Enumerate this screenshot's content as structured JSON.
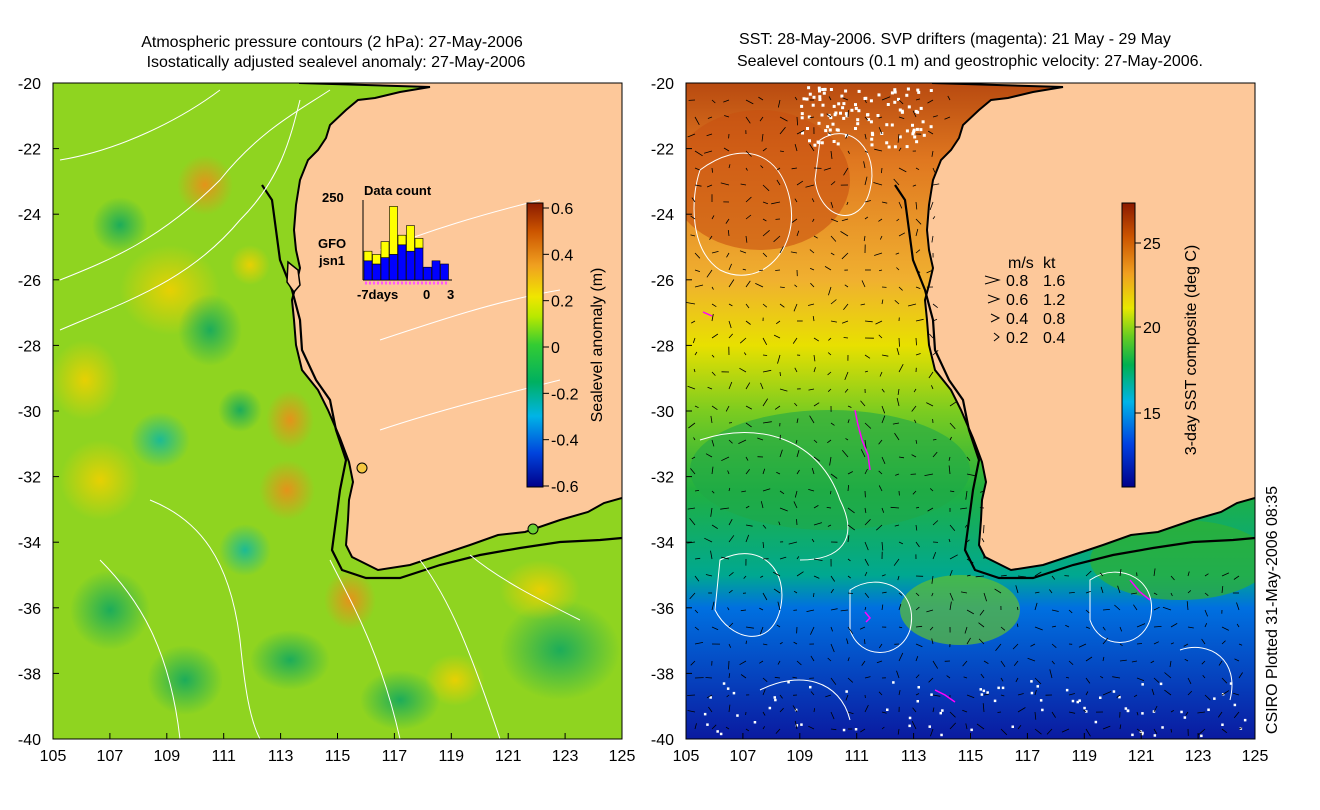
{
  "left_panel": {
    "title_line1": "Atmospheric pressure contours (2 hPa): 27-May-2006",
    "title_line2": "Isostatically adjusted sealevel anomaly: 27-May-2006",
    "x_ticks": [
      "105",
      "107",
      "109",
      "111",
      "113",
      "115",
      "117",
      "119",
      "121",
      "123",
      "125"
    ],
    "y_ticks": [
      "-20",
      "-22",
      "-24",
      "-26",
      "-28",
      "-30",
      "-32",
      "-34",
      "-36",
      "-38",
      "-40"
    ],
    "colorbar": {
      "label": "Sealevel anomaly (m)",
      "ticks": [
        "0.6",
        "0.4",
        "0.2",
        "0",
        "-0.2",
        "-0.4",
        "-0.6"
      ]
    },
    "inset": {
      "title": "Data count",
      "ymax_label": "250",
      "legend": [
        {
          "label": "GFO",
          "color": "#ffff00"
        },
        {
          "label": "jsn1",
          "color": "#0000ff"
        }
      ],
      "x_labels": [
        "-7days",
        "0",
        "3"
      ],
      "bars_gfo": [
        90,
        80,
        120,
        230,
        140,
        170,
        130,
        0,
        0,
        0
      ],
      "bars_jsn1": [
        60,
        50,
        70,
        80,
        110,
        90,
        100,
        40,
        60,
        50
      ]
    }
  },
  "right_panel": {
    "title_line1": "SST: 28-May-2006. SVP drifters (magenta): 21 May - 29 May",
    "title_line2": "Sealevel contours (0.1 m) and geostrophic velocity: 27-May-2006.",
    "x_ticks": [
      "105",
      "107",
      "109",
      "111",
      "113",
      "115",
      "117",
      "119",
      "121",
      "123",
      "125"
    ],
    "y_ticks": [
      "-20",
      "-22",
      "-24",
      "-26",
      "-28",
      "-30",
      "-32",
      "-34",
      "-36",
      "-38",
      "-40"
    ],
    "colorbar": {
      "label": "3-day SST composite (deg C)",
      "ticks": [
        "25",
        "20",
        "15"
      ]
    },
    "velocity_legend": {
      "header_ms": "m/s",
      "header_kt": "kt",
      "rows": [
        {
          "ms": "0.8",
          "kt": "1.6"
        },
        {
          "ms": "0.6",
          "kt": "1.2"
        },
        {
          "ms": "0.4",
          "kt": "0.8"
        },
        {
          "ms": "0.2",
          "kt": "0.4"
        }
      ]
    }
  },
  "credit": "CSIRO Plotted 31-May-2006 08:35",
  "colors": {
    "land": "#fdc89a",
    "coast": "#000000",
    "contour": "#ffffff",
    "drifter": "#ff00ff"
  }
}
